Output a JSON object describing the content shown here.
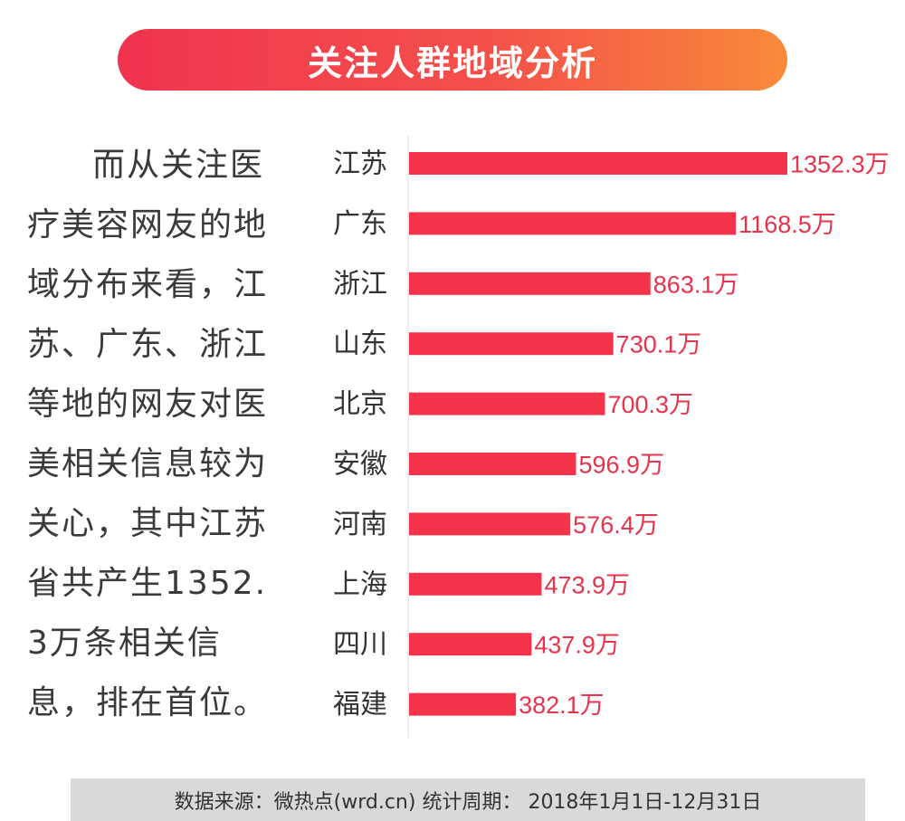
{
  "title": "关注人群地域分析",
  "description": "而从关注医疗美容网友的地域分布来看，江苏、广东、浙江等地的网友对医美相关信息较为关心，其中江苏省共产生1352.3万条相关信息，排在首位。",
  "footer": "数据来源：微热点(wrd.cn)  统计周期：  2018年1月1日-12月31日",
  "colors": {
    "bar": "#f5344c",
    "value_label": "#e8334c",
    "title_gradient_start": "#f0344f",
    "title_gradient_end": "#f88a3a",
    "footer_bg": "#d9d9d9"
  },
  "chart_data": {
    "type": "bar",
    "orientation": "horizontal",
    "categories": [
      "江苏",
      "广东",
      "浙江",
      "山东",
      "北京",
      "安徽",
      "河南",
      "上海",
      "四川",
      "福建"
    ],
    "values": [
      1352.3,
      1168.5,
      863.1,
      730.1,
      700.3,
      596.9,
      576.4,
      473.9,
      437.9,
      382.1
    ],
    "value_labels": [
      "1352.3万",
      "1168.5万",
      "863.1万",
      "730.1万",
      "700.3万",
      "596.9万",
      "576.4万",
      "473.9万",
      "437.9万",
      "382.1万"
    ],
    "unit": "万",
    "grid": false,
    "legend": "none"
  }
}
